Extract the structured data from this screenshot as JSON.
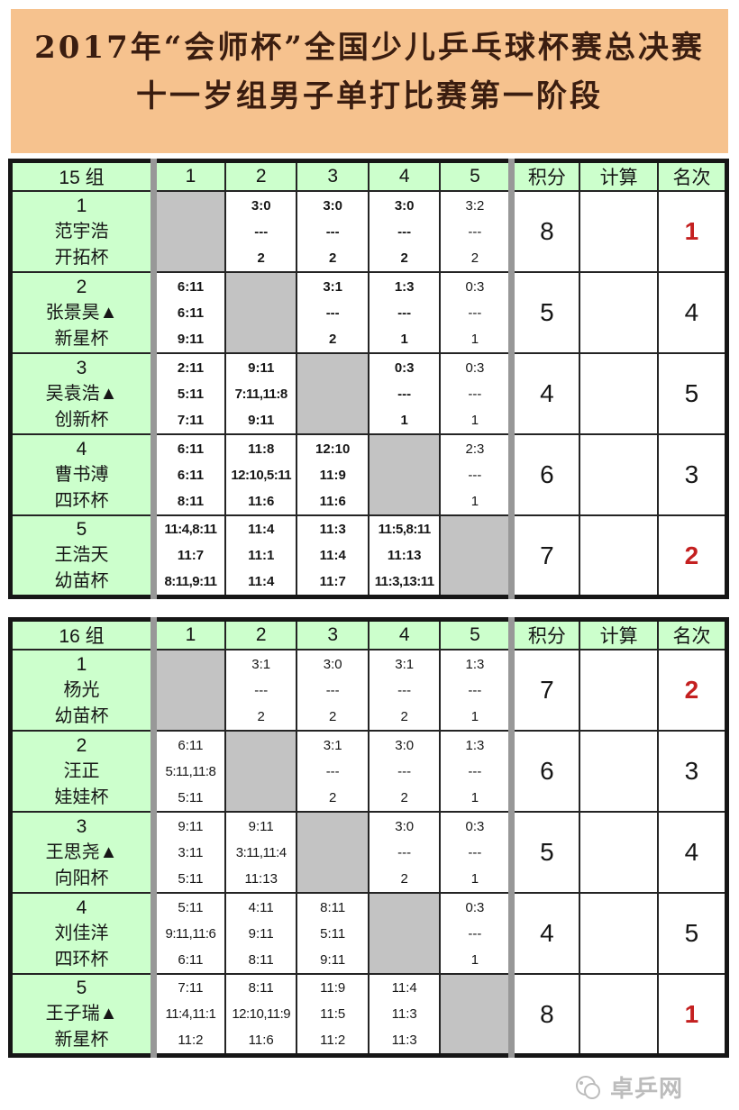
{
  "banner": {
    "line1": "2017年“会师杯”全国少儿乒乓球杯赛总决赛",
    "line2": "十一岁组男子单打比赛第一阶段"
  },
  "colors": {
    "banner_bg": "#f6c28e",
    "banner_text": "#3a1d10",
    "header_green": "#ccffcc",
    "diagonal_gray": "#c3c3c3",
    "separator_gray": "#989898",
    "score_red": "#c42020",
    "score_black": "#161616"
  },
  "tables": [
    {
      "group_label": "15 组",
      "col_headers": [
        "1",
        "2",
        "3",
        "4",
        "5"
      ],
      "score_headers": [
        "积分",
        "计算",
        "名次"
      ],
      "rows": [
        {
          "seed": "1",
          "name": "范宇浩",
          "club": "开拓杯",
          "cells": [
            {
              "d": true
            },
            {
              "l": [
                "3:0",
                "---",
                "2"
              ],
              "c": "red",
              "b": true
            },
            {
              "l": [
                "3:0",
                "---",
                "2"
              ],
              "c": "red",
              "b": true
            },
            {
              "l": [
                "3:0",
                "---",
                "2"
              ],
              "c": "red",
              "b": true
            },
            {
              "l": [
                "3:2",
                "---",
                "2"
              ],
              "c": "red",
              "b": false
            }
          ],
          "points": "8",
          "calc": "",
          "rank": "1",
          "rank_red": true
        },
        {
          "seed": "2",
          "name": "张景昊▲",
          "club": "新星杯",
          "cells": [
            {
              "l": [
                "6:11",
                "6:11",
                "9:11"
              ],
              "c": "black",
              "b": true
            },
            {
              "d": true
            },
            {
              "l": [
                "3:1",
                "---",
                "2"
              ],
              "c": "red",
              "b": true
            },
            {
              "l": [
                "1:3",
                "---",
                "1"
              ],
              "c": "black",
              "b": true
            },
            {
              "l": [
                "0:3",
                "---",
                "1"
              ],
              "c": "black",
              "b": false
            }
          ],
          "points": "5",
          "calc": "",
          "rank": "4",
          "rank_red": false
        },
        {
          "seed": "3",
          "name": "吴袁浩▲",
          "club": "创新杯",
          "cells": [
            {
              "l": [
                "2:11",
                "5:11",
                "7:11"
              ],
              "c": "black",
              "b": true
            },
            {
              "l": [
                "9:11",
                "7:11,11:8",
                "9:11"
              ],
              "c": "black",
              "b": true
            },
            {
              "d": true
            },
            {
              "l": [
                "0:3",
                "---",
                "1"
              ],
              "c": "black",
              "b": true
            },
            {
              "l": [
                "0:3",
                "---",
                "1"
              ],
              "c": "black",
              "b": false
            }
          ],
          "points": "4",
          "calc": "",
          "rank": "5",
          "rank_red": false
        },
        {
          "seed": "4",
          "name": "曹书溥",
          "club": "四环杯",
          "cells": [
            {
              "l": [
                "6:11",
                "6:11",
                "8:11"
              ],
              "c": "black",
              "b": true
            },
            {
              "l": [
                "11:8",
                "12:10,5:11",
                "11:6"
              ],
              "c": "red",
              "b": true
            },
            {
              "l": [
                "12:10",
                "11:9",
                "11:6"
              ],
              "c": "red",
              "b": true
            },
            {
              "d": true
            },
            {
              "l": [
                "2:3",
                "---",
                "1"
              ],
              "c": "black",
              "b": false
            }
          ],
          "points": "6",
          "calc": "",
          "rank": "3",
          "rank_red": false
        },
        {
          "seed": "5",
          "name": "王浩天",
          "club": "幼苗杯",
          "cells": [
            {
              "l": [
                "11:4,8:11",
                "11:7",
                "8:11,9:11"
              ],
              "c": "black",
              "b": true
            },
            {
              "l": [
                "11:4",
                "11:1",
                "11:4"
              ],
              "c": "red",
              "b": true
            },
            {
              "l": [
                "11:3",
                "11:4",
                "11:7"
              ],
              "c": "red",
              "b": true
            },
            {
              "l": [
                "11:5,8:11",
                "11:13",
                "11:3,13:11"
              ],
              "c": "red",
              "b": true
            },
            {
              "d": true
            }
          ],
          "points": "7",
          "calc": "",
          "rank": "2",
          "rank_red": true
        }
      ]
    },
    {
      "group_label": "16 组",
      "col_headers": [
        "1",
        "2",
        "3",
        "4",
        "5"
      ],
      "score_headers": [
        "积分",
        "计算",
        "名次"
      ],
      "rows": [
        {
          "seed": "1",
          "name": "杨光",
          "club": "幼苗杯",
          "cells": [
            {
              "d": true
            },
            {
              "l": [
                "3:1",
                "---",
                "2"
              ],
              "c": "red",
              "b": false
            },
            {
              "l": [
                "3:0",
                "---",
                "2"
              ],
              "c": "red",
              "b": false
            },
            {
              "l": [
                "3:1",
                "---",
                "2"
              ],
              "c": "red",
              "b": false
            },
            {
              "l": [
                "1:3",
                "---",
                "1"
              ],
              "c": "black",
              "b": false
            }
          ],
          "points": "7",
          "calc": "",
          "rank": "2",
          "rank_red": true
        },
        {
          "seed": "2",
          "name": "汪正",
          "club": "娃娃杯",
          "cells": [
            {
              "l": [
                "6:11",
                "5:11,11:8",
                "5:11"
              ],
              "c": "black",
              "b": false
            },
            {
              "d": true
            },
            {
              "l": [
                "3:1",
                "---",
                "2"
              ],
              "c": "red",
              "b": false
            },
            {
              "l": [
                "3:0",
                "---",
                "2"
              ],
              "c": "red",
              "b": false
            },
            {
              "l": [
                "1:3",
                "---",
                "1"
              ],
              "c": "black",
              "b": false
            }
          ],
          "points": "6",
          "calc": "",
          "rank": "3",
          "rank_red": false
        },
        {
          "seed": "3",
          "name": "王思尧▲",
          "club": "向阳杯",
          "cells": [
            {
              "l": [
                "9:11",
                "3:11",
                "5:11"
              ],
              "c": "black",
              "b": false
            },
            {
              "l": [
                "9:11",
                "3:11,11:4",
                "11:13"
              ],
              "c": "black",
              "b": false
            },
            {
              "d": true
            },
            {
              "l": [
                "3:0",
                "---",
                "2"
              ],
              "c": "red",
              "b": false
            },
            {
              "l": [
                "0:3",
                "---",
                "1"
              ],
              "c": "black",
              "b": false
            }
          ],
          "points": "5",
          "calc": "",
          "rank": "4",
          "rank_red": false
        },
        {
          "seed": "4",
          "name": "刘佳洋",
          "club": "四环杯",
          "cells": [
            {
              "l": [
                "5:11",
                "9:11,11:6",
                "6:11"
              ],
              "c": "black",
              "b": false
            },
            {
              "l": [
                "4:11",
                "9:11",
                "8:11"
              ],
              "c": "black",
              "b": false
            },
            {
              "l": [
                "8:11",
                "5:11",
                "9:11"
              ],
              "c": "black",
              "b": false
            },
            {
              "d": true
            },
            {
              "l": [
                "0:3",
                "---",
                "1"
              ],
              "c": "black",
              "b": false
            }
          ],
          "points": "4",
          "calc": "",
          "rank": "5",
          "rank_red": false
        },
        {
          "seed": "5",
          "name": "王子瑞▲",
          "club": "新星杯",
          "cells": [
            {
              "l": [
                "7:11",
                "11:4,11:1",
                "11:2"
              ],
              "c": "red",
              "b": false
            },
            {
              "l": [
                "8:11",
                "12:10,11:9",
                "11:6"
              ],
              "c": "red",
              "b": false
            },
            {
              "l": [
                "11:9",
                "11:5",
                "11:2"
              ],
              "c": "red",
              "b": false
            },
            {
              "l": [
                "11:4",
                "11:3",
                "11:3"
              ],
              "c": "red",
              "b": false
            },
            {
              "d": true
            }
          ],
          "points": "8",
          "calc": "",
          "rank": "1",
          "rank_red": true
        }
      ]
    }
  ],
  "watermark": {
    "text": "卓乒网"
  }
}
